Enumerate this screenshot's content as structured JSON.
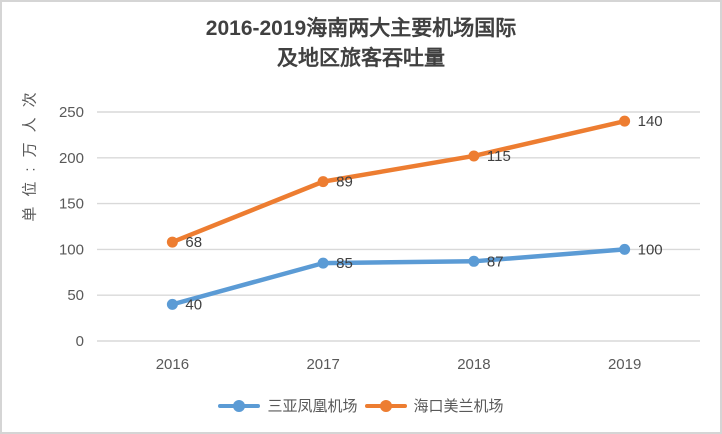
{
  "title": {
    "line1": "2016-2019海南两大主要机场国际",
    "line2": "及地区旅客吞吐量"
  },
  "chart_data": {
    "type": "line",
    "title": "2016-2019海南两大主要机场国际及地区旅客吞吐量",
    "ylabel": "单位:万人次",
    "xlabel": "",
    "categories": [
      "2016",
      "2017",
      "2018",
      "2019"
    ],
    "series": [
      {
        "name": "三亚凤凰机场",
        "color": "#5B9BD5",
        "values": [
          40,
          85,
          87,
          100
        ],
        "data_labels": [
          "40",
          "85",
          "87",
          "100"
        ],
        "plotted_values": [
          40,
          85,
          87,
          100
        ]
      },
      {
        "name": "海口美兰机场",
        "color": "#ED7D31",
        "values": [
          68,
          89,
          115,
          140
        ],
        "data_labels": [
          "68",
          "89",
          "115",
          "140"
        ],
        "plotted_values": [
          108,
          174,
          202,
          240
        ]
      }
    ],
    "ylim": [
      0,
      250
    ],
    "yticks": [
      0,
      50,
      100,
      150,
      200,
      250
    ],
    "grid": true,
    "marker": "circle",
    "legend_position": "bottom",
    "plot_note": "second series drawn stacked (cumulative) while labels show raw values"
  },
  "colors": {
    "background": "#FFFFFF",
    "border": "#D5D5D5",
    "grid": "#D9D9D9",
    "axis_text": "#595959",
    "title_text": "#404040",
    "data_label_text": "#404040"
  }
}
